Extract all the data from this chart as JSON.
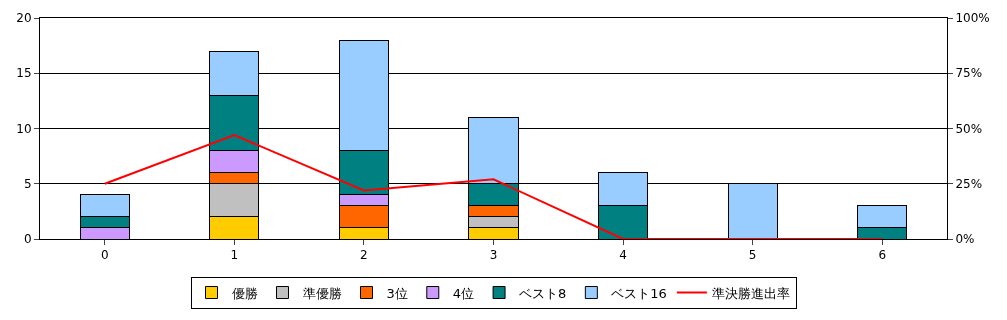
{
  "chart_data": {
    "type": "bar",
    "stacked": true,
    "categories": [
      "0",
      "1",
      "2",
      "3",
      "4",
      "5",
      "6"
    ],
    "series": [
      {
        "name": "優勝",
        "color": "#ffcc00",
        "values": [
          null,
          2,
          1,
          1,
          null,
          null,
          null
        ]
      },
      {
        "name": "準優勝",
        "color": "#c0c0c0",
        "values": [
          null,
          3,
          null,
          1,
          null,
          null,
          null
        ]
      },
      {
        "name": "3位",
        "color": "#ff6600",
        "values": [
          null,
          1,
          2,
          1,
          null,
          null,
          null
        ]
      },
      {
        "name": "4位",
        "color": "#cc99ff",
        "values": [
          1,
          2,
          1,
          null,
          null,
          null,
          null
        ]
      },
      {
        "name": "ベスト8",
        "color": "#008080",
        "values": [
          1,
          5,
          4,
          2,
          3,
          null,
          1
        ]
      },
      {
        "name": "ベスト16",
        "color": "#99ccff",
        "values": [
          2,
          4,
          10,
          6,
          3,
          5,
          2
        ]
      },
      {
        "name": "準決勝進出率",
        "color": "#ff0000",
        "type": "line",
        "axis": "y2",
        "values": [
          25,
          47,
          22,
          27,
          0,
          0,
          0
        ]
      }
    ],
    "ylim": [
      0,
      20
    ],
    "yticks": [
      0,
      5,
      10,
      15,
      20
    ],
    "y2lim": [
      0,
      100
    ],
    "y2ticks": [
      {
        "value": 0,
        "label": "0%"
      },
      {
        "value": 25,
        "label": "25%"
      },
      {
        "value": 50,
        "label": "50%"
      },
      {
        "value": 75,
        "label": "75%"
      },
      {
        "value": 100,
        "label": "100%"
      }
    ],
    "grid": "y",
    "legend": "bottom",
    "marker": "none",
    "line_style": "solid"
  }
}
